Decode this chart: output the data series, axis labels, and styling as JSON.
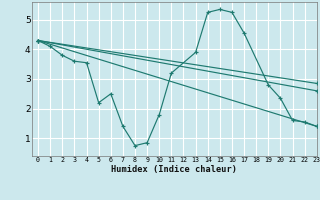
{
  "bg_color": "#cce8ed",
  "grid_color": "#ffffff",
  "line_color": "#1e7a70",
  "xlabel": "Humidex (Indice chaleur)",
  "xlim": [
    -0.5,
    23
  ],
  "ylim": [
    0.4,
    5.6
  ],
  "xticks": [
    0,
    1,
    2,
    3,
    4,
    5,
    6,
    7,
    8,
    9,
    10,
    11,
    12,
    13,
    14,
    15,
    16,
    17,
    18,
    19,
    20,
    21,
    22,
    23
  ],
  "yticks": [
    1,
    2,
    3,
    4,
    5
  ],
  "series": [
    {
      "x": [
        0,
        1,
        2,
        3,
        4,
        5,
        6,
        7,
        8,
        9,
        10,
        11,
        13,
        14,
        15,
        16,
        17,
        19,
        20,
        21,
        22,
        23
      ],
      "y": [
        4.3,
        4.1,
        3.8,
        3.6,
        3.55,
        2.2,
        2.5,
        1.4,
        0.75,
        0.85,
        1.8,
        3.2,
        3.9,
        5.25,
        5.35,
        5.25,
        4.55,
        2.8,
        2.35,
        1.6,
        1.55,
        1.4
      ]
    },
    {
      "x": [
        0,
        23
      ],
      "y": [
        4.3,
        2.85
      ]
    },
    {
      "x": [
        0,
        23
      ],
      "y": [
        4.3,
        2.6
      ]
    },
    {
      "x": [
        0,
        23
      ],
      "y": [
        4.3,
        1.4
      ]
    }
  ]
}
